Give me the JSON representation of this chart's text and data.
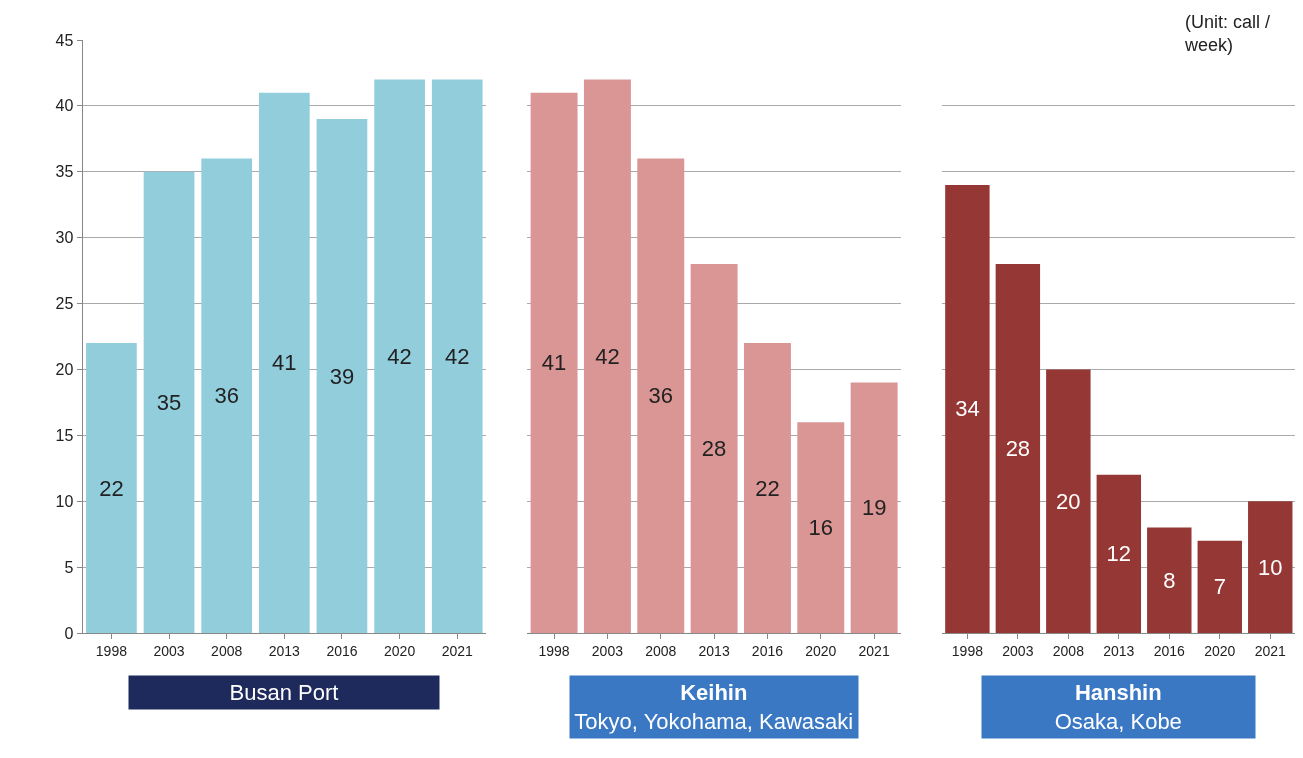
{
  "chart_data": [
    {
      "type": "bar",
      "xlabel": "Busan Port",
      "categories": [
        "1998",
        "2003",
        "2008",
        "2013",
        "2016",
        "2020",
        "2021"
      ],
      "values": [
        22,
        35,
        36,
        41,
        39,
        42,
        42
      ],
      "color": "#92cddc",
      "ylim": [
        0,
        45
      ],
      "yticks": [
        0,
        5,
        10,
        15,
        20,
        25,
        30,
        35,
        40,
        45
      ],
      "grid": "y",
      "data_labels": true
    },
    {
      "type": "bar",
      "xlabel": "Keihin\nTokyo, Yokohama, Kawasaki",
      "categories": [
        "1998",
        "2003",
        "2008",
        "2013",
        "2016",
        "2020",
        "2021"
      ],
      "values": [
        41,
        42,
        36,
        28,
        22,
        16,
        19
      ],
      "color": "#d99694",
      "ylim": [
        0,
        45
      ],
      "yticks": [
        0,
        5,
        10,
        15,
        20,
        25,
        30,
        35,
        40,
        45
      ],
      "grid": "y",
      "data_labels": true,
      "tick_labels": "x"
    },
    {
      "type": "bar",
      "xlabel": "Hanshin\nOsaka, Kobe",
      "categories": [
        "1998",
        "2003",
        "2008",
        "2013",
        "2016",
        "2020",
        "2021"
      ],
      "values": [
        34,
        28,
        20,
        12,
        8,
        7,
        10
      ],
      "color": "#953735",
      "ylim": [
        0,
        45
      ],
      "yticks": [
        0,
        5,
        10,
        15,
        20,
        25,
        30,
        35,
        40,
        45
      ],
      "grid": "y",
      "data_labels": true,
      "tick_labels": "x",
      "annotations": [
        "(Unit: call /\nweek)"
      ]
    }
  ]
}
